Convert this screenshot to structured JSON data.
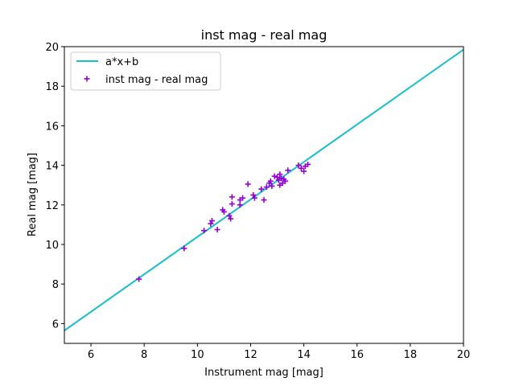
{
  "chart_data": {
    "type": "scatter",
    "title": "inst mag - real mag",
    "xlabel": "Instrument mag [mag]",
    "ylabel": "Real mag [mag]",
    "xlim": [
      5,
      20
    ],
    "ylim": [
      5,
      20
    ],
    "xticks": [
      6,
      8,
      10,
      12,
      14,
      16,
      18,
      20
    ],
    "yticks": [
      6,
      8,
      10,
      12,
      14,
      16,
      18,
      20
    ],
    "grid": false,
    "legend_position": "top-left",
    "line": {
      "name": "a*x+b",
      "color": "#17becf",
      "x": [
        5,
        20
      ],
      "y": [
        5.65,
        19.85
      ]
    },
    "scatter": {
      "name": "inst mag - real mag",
      "color": "#9400d3",
      "marker": "+",
      "points": [
        [
          7.8,
          8.25
        ],
        [
          9.5,
          9.8
        ],
        [
          10.25,
          10.7
        ],
        [
          10.5,
          11.05
        ],
        [
          10.55,
          11.2
        ],
        [
          10.75,
          10.75
        ],
        [
          10.95,
          11.75
        ],
        [
          11.0,
          11.65
        ],
        [
          11.2,
          11.45
        ],
        [
          11.25,
          11.3
        ],
        [
          11.3,
          12.4
        ],
        [
          11.3,
          12.05
        ],
        [
          11.6,
          12.0
        ],
        [
          11.6,
          12.25
        ],
        [
          11.7,
          12.35
        ],
        [
          11.9,
          13.05
        ],
        [
          12.1,
          12.5
        ],
        [
          12.15,
          12.35
        ],
        [
          12.4,
          12.8
        ],
        [
          12.5,
          12.25
        ],
        [
          12.6,
          12.9
        ],
        [
          12.7,
          13.1
        ],
        [
          12.75,
          13.2
        ],
        [
          12.8,
          12.95
        ],
        [
          12.9,
          13.45
        ],
        [
          13.0,
          13.4
        ],
        [
          13.05,
          13.25
        ],
        [
          13.1,
          13.0
        ],
        [
          13.1,
          13.55
        ],
        [
          13.15,
          13.35
        ],
        [
          13.2,
          13.1
        ],
        [
          13.25,
          13.3
        ],
        [
          13.3,
          13.2
        ],
        [
          13.4,
          13.75
        ],
        [
          13.8,
          14.0
        ],
        [
          13.9,
          13.85
        ],
        [
          14.0,
          13.7
        ],
        [
          14.05,
          13.95
        ],
        [
          14.15,
          14.05
        ]
      ]
    }
  }
}
